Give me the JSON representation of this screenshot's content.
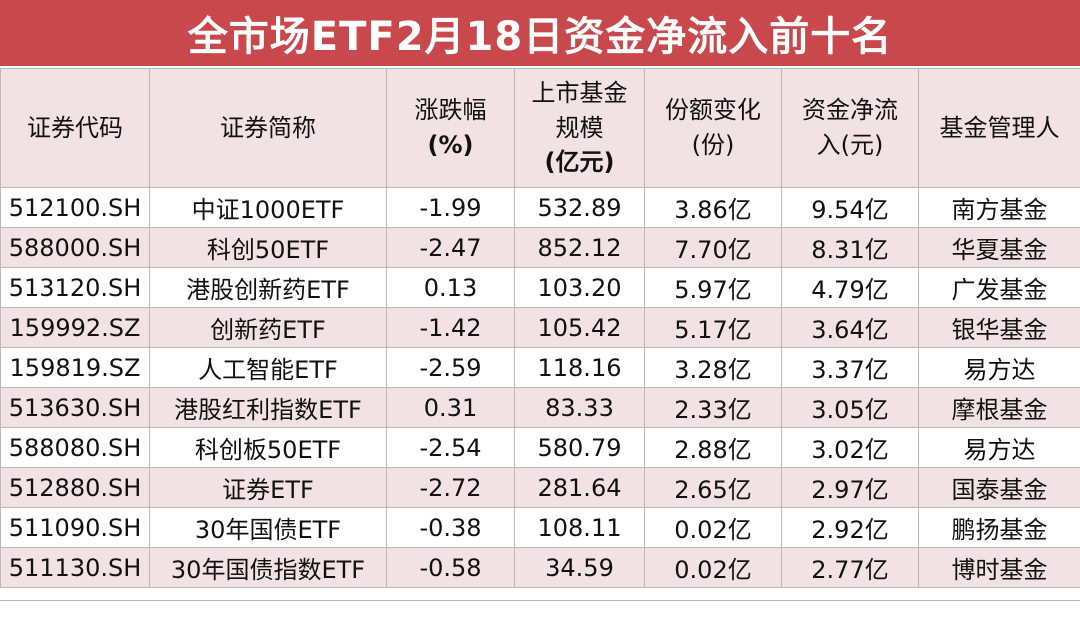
{
  "title": "全市场ETF2月18日资金净流入前十名",
  "colors": {
    "title_bg": "#c8484c",
    "title_text": "#ffffff",
    "row_shade": "#f2e2e4",
    "grid_line": "#b8b8b8"
  },
  "headers": {
    "code": {
      "l1": "证券代码"
    },
    "name": {
      "l1": "证券简称"
    },
    "change": {
      "l1": "涨跌幅",
      "l2": "(%)"
    },
    "size": {
      "l1": "上市基金",
      "l2": "规模",
      "l3": "(亿元)"
    },
    "share": {
      "l1": "份额变化",
      "l2": "(份)"
    },
    "flow": {
      "l1": "资金净流",
      "l2": "入(元)"
    },
    "manager": {
      "l1": "基金管理人"
    }
  },
  "rows": [
    {
      "code": "512100.SH",
      "name": "中证1000ETF",
      "change": "-1.99",
      "size": "532.89",
      "share": "3.86亿",
      "flow": "9.54亿",
      "manager": "南方基金"
    },
    {
      "code": "588000.SH",
      "name": "科创50ETF",
      "change": "-2.47",
      "size": "852.12",
      "share": "7.70亿",
      "flow": "8.31亿",
      "manager": "华夏基金"
    },
    {
      "code": "513120.SH",
      "name": "港股创新药ETF",
      "change": "0.13",
      "size": "103.20",
      "share": "5.97亿",
      "flow": "4.79亿",
      "manager": "广发基金"
    },
    {
      "code": "159992.SZ",
      "name": "创新药ETF",
      "change": "-1.42",
      "size": "105.42",
      "share": "5.17亿",
      "flow": "3.64亿",
      "manager": "银华基金"
    },
    {
      "code": "159819.SZ",
      "name": "人工智能ETF",
      "change": "-2.59",
      "size": "118.16",
      "share": "3.28亿",
      "flow": "3.37亿",
      "manager": "易方达"
    },
    {
      "code": "513630.SH",
      "name": "港股红利指数ETF",
      "change": "0.31",
      "size": "83.33",
      "share": "2.33亿",
      "flow": "3.05亿",
      "manager": "摩根基金"
    },
    {
      "code": "588080.SH",
      "name": "科创板50ETF",
      "change": "-2.54",
      "size": "580.79",
      "share": "2.88亿",
      "flow": "3.02亿",
      "manager": "易方达"
    },
    {
      "code": "512880.SH",
      "name": "证券ETF",
      "change": "-2.72",
      "size": "281.64",
      "share": "2.65亿",
      "flow": "2.97亿",
      "manager": "国泰基金"
    },
    {
      "code": "511090.SH",
      "name": "30年国债ETF",
      "change": "-0.38",
      "size": "108.11",
      "share": "0.02亿",
      "flow": "2.92亿",
      "manager": "鹏扬基金"
    },
    {
      "code": "511130.SH",
      "name": "30年国债指数ETF",
      "change": "-0.58",
      "size": "34.59",
      "share": "0.02亿",
      "flow": "2.77亿",
      "manager": "博时基金"
    }
  ]
}
